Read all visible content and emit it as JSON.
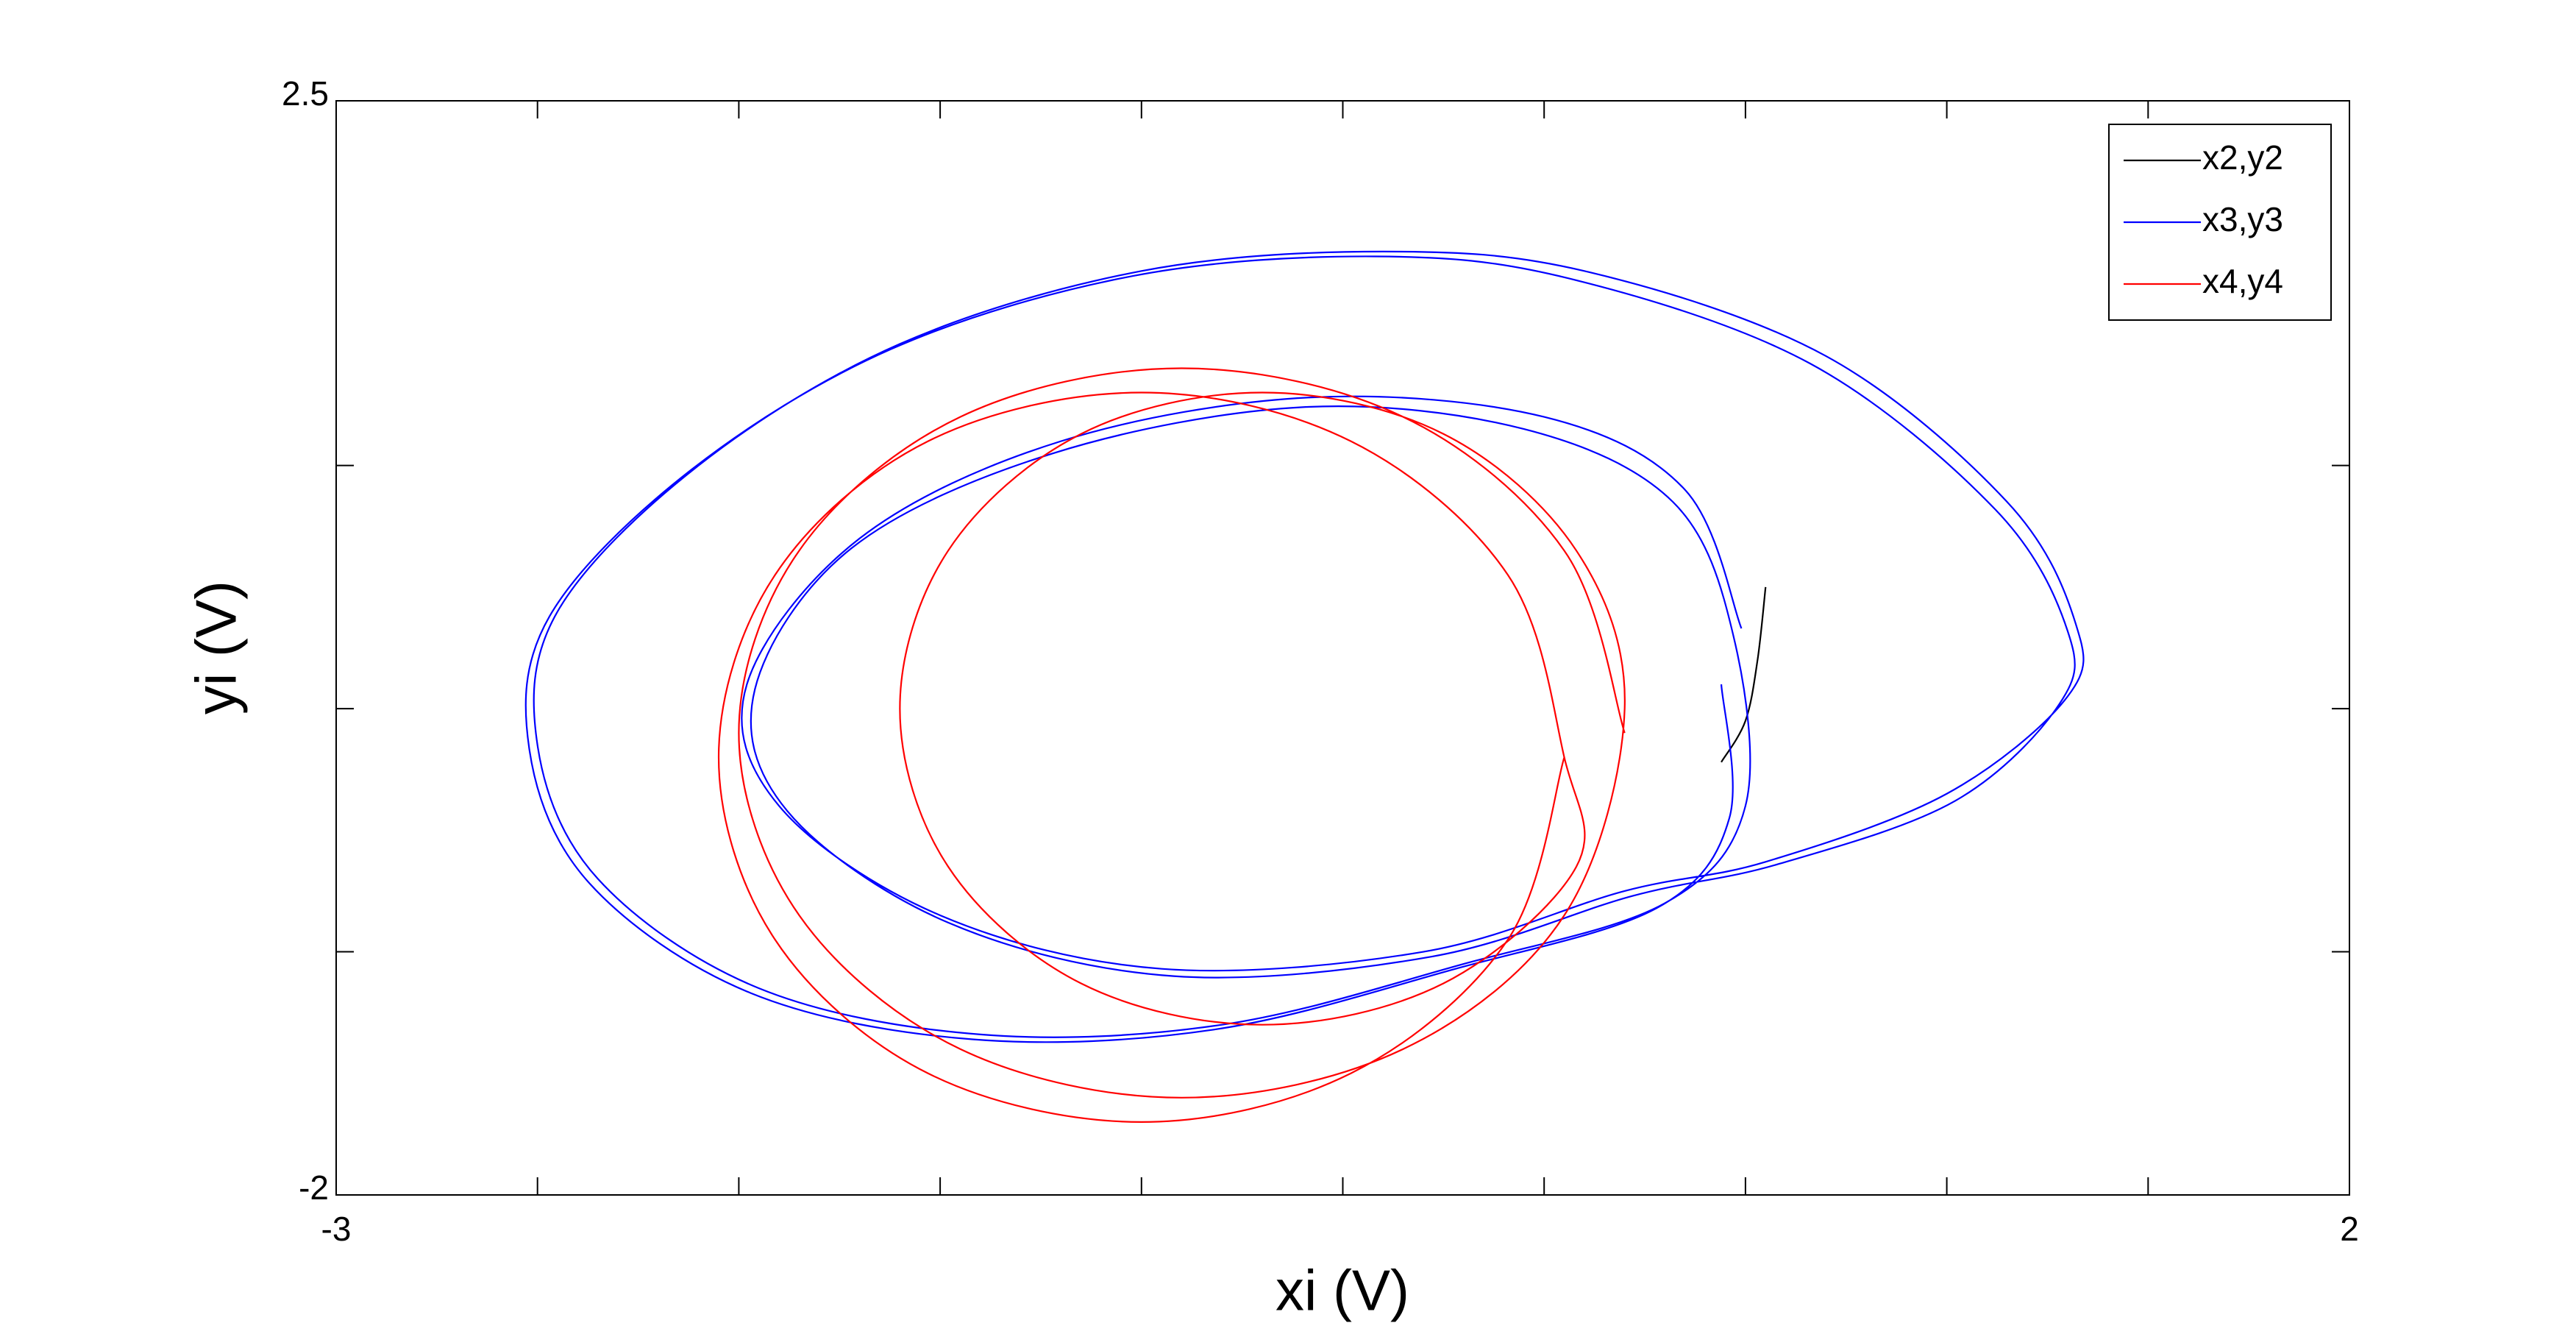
{
  "chart_data": {
    "type": "line",
    "xlabel": "xi (V)",
    "ylabel": "yi (V)",
    "xlim": [
      -3,
      2
    ],
    "ylim": [
      -2,
      2.5
    ],
    "xticks": [
      -3,
      2
    ],
    "yticks": [
      -2,
      2.5
    ],
    "x_minor_ticks": [
      -2.5,
      -2,
      -1.5,
      -1,
      -0.5,
      0,
      0.5,
      1,
      1.5
    ],
    "y_minor_ticks": [
      -1,
      0,
      1
    ],
    "legend": "upper right",
    "series": [
      {
        "name": "x2,y2",
        "color": "#000000",
        "x": [
          0.55,
          0.53,
          0.5,
          0.44
        ],
        "values": [
          0.5,
          0.2,
          -0.05,
          -0.22
        ]
      },
      {
        "name": "x3,y3",
        "color": "#0000ff",
        "x": [
          0.49,
          0.35,
          0.0,
          -0.58,
          -1.2,
          -1.7,
          -1.98,
          -1.9,
          -1.5,
          -0.95,
          -0.3,
          0.2,
          0.55,
          1.0,
          1.3,
          1.32,
          1.15,
          0.7,
          0.1,
          -0.4,
          -1.0,
          -1.6,
          -2.1,
          -2.45,
          -2.5,
          -2.35,
          -1.95,
          -1.4,
          -0.8,
          -0.2,
          0.3,
          0.5,
          0.47,
          0.32,
          -0.05,
          -0.6,
          -1.22,
          -1.72,
          -1.96,
          -1.88,
          -1.48,
          -0.92,
          -0.28,
          0.22,
          0.58,
          1.02,
          1.28,
          1.3,
          1.12,
          0.66,
          0.06,
          -0.42,
          -1.02,
          -1.62,
          -2.12,
          -2.47,
          -2.52,
          -2.37,
          -1.97,
          -1.42,
          -0.82,
          -0.22,
          0.28,
          0.46,
          0.44
        ],
        "values": [
          0.33,
          0.9,
          1.2,
          1.28,
          1.1,
          0.7,
          0.1,
          -0.4,
          -0.85,
          -1.07,
          -1.0,
          -0.75,
          -0.63,
          -0.35,
          0.05,
          0.35,
          0.85,
          1.45,
          1.8,
          1.88,
          1.8,
          1.5,
          1.0,
          0.4,
          -0.15,
          -0.7,
          -1.15,
          -1.34,
          -1.3,
          -1.05,
          -0.8,
          -0.4,
          0.3,
          0.85,
          1.15,
          1.24,
          1.05,
          0.66,
          0.08,
          -0.42,
          -0.88,
          -1.1,
          -1.02,
          -0.77,
          -0.64,
          -0.38,
          0.02,
          0.32,
          0.82,
          1.42,
          1.77,
          1.86,
          1.78,
          1.48,
          0.98,
          0.38,
          -0.17,
          -0.72,
          -1.17,
          -1.36,
          -1.32,
          -1.07,
          -0.82,
          -0.45,
          0.1
        ]
      },
      {
        "name": "x4,y4",
        "color": "#ff0000",
        "x": [
          0.2,
          0.05,
          -0.35,
          -0.9,
          -1.45,
          -1.85,
          -2.0,
          -1.85,
          -1.45,
          -0.9,
          -0.35,
          0.05,
          0.2,
          0.08,
          -0.25,
          -0.7,
          -1.15,
          -1.48,
          -1.6,
          -1.48,
          -1.15,
          -0.7,
          -0.25,
          0.08,
          0.05,
          -0.09,
          -0.48,
          -1.0,
          -1.53,
          -1.91,
          -2.05,
          -1.91,
          -1.53,
          -1.0,
          -0.48,
          -0.09,
          0.05
        ],
        "values": [
          -0.1,
          0.65,
          1.2,
          1.4,
          1.2,
          0.65,
          -0.1,
          -0.85,
          -1.4,
          -1.6,
          -1.4,
          -0.85,
          0,
          0.65,
          1.13,
          1.3,
          1.13,
          0.65,
          0,
          -0.65,
          -1.13,
          -1.3,
          -1.13,
          -0.65,
          -0.2,
          0.55,
          1.1,
          1.3,
          1.1,
          0.55,
          -0.2,
          -0.95,
          -1.5,
          -1.7,
          -1.5,
          -0.95,
          -0.2
        ]
      }
    ]
  }
}
